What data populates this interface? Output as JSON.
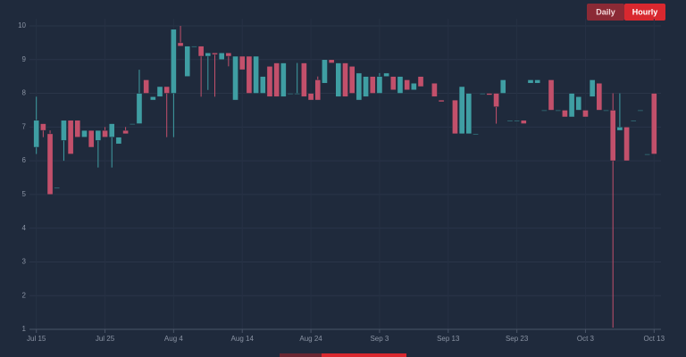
{
  "chart_data": {
    "type": "candlestick",
    "x": [
      "Jul 15",
      "Jul 16",
      "Jul 17",
      "Jul 18",
      "Jul 19",
      "Jul 20",
      "Jul 21",
      "Jul 22",
      "Jul 23",
      "Jul 24",
      "Jul 25",
      "Jul 26",
      "Jul 27",
      "Jul 28",
      "Jul 29",
      "Jul 30",
      "Jul 31",
      "Aug 1",
      "Aug 2",
      "Aug 3",
      "Aug 4",
      "Aug 5",
      "Aug 6",
      "Aug 7",
      "Aug 8",
      "Aug 9",
      "Aug 10",
      "Aug 11",
      "Aug 12",
      "Aug 13",
      "Aug 14",
      "Aug 15",
      "Aug 16",
      "Aug 17",
      "Aug 18",
      "Aug 19",
      "Aug 20",
      "Aug 21",
      "Aug 22",
      "Aug 23",
      "Aug 24",
      "Aug 25",
      "Aug 26",
      "Aug 27",
      "Aug 28",
      "Aug 29",
      "Aug 30",
      "Aug 31",
      "Sep 1",
      "Sep 2",
      "Sep 3",
      "Sep 4",
      "Sep 5",
      "Sep 6",
      "Sep 7",
      "Sep 8",
      "Sep 9",
      "Sep 11",
      "Sep 12",
      "Sep 14",
      "Sep 15",
      "Sep 16",
      "Sep 17",
      "Sep 18",
      "Sep 19",
      "Sep 20",
      "Sep 21",
      "Sep 22",
      "Sep 23",
      "Sep 24",
      "Sep 25",
      "Sep 26",
      "Sep 27",
      "Sep 28",
      "Sep 29",
      "Sep 30",
      "Oct 1",
      "Oct 2",
      "Oct 3",
      "Oct 4",
      "Oct 5",
      "Oct 6",
      "Oct 7",
      "Oct 8",
      "Oct 9",
      "Oct 10",
      "Oct 11",
      "Oct 12",
      "Oct 13"
    ],
    "open": [
      6.4,
      7.1,
      6.8,
      5.2,
      6.6,
      7.2,
      7.2,
      6.7,
      6.9,
      6.6,
      6.9,
      6.7,
      6.5,
      6.9,
      7.1,
      7.1,
      8.4,
      7.8,
      7.9,
      8.2,
      8.0,
      9.5,
      8.5,
      9.4,
      9.4,
      9.1,
      9.2,
      9.0,
      9.2,
      7.8,
      9.1,
      9.1,
      8.0,
      8.0,
      8.8,
      8.9,
      7.9,
      8.0,
      8.0,
      8.9,
      8.0,
      8.4,
      8.3,
      9.0,
      7.9,
      8.9,
      8.8,
      7.8,
      7.9,
      8.5,
      8.0,
      8.5,
      8.5,
      8.0,
      8.4,
      8.1,
      8.5,
      8.3,
      7.8,
      7.8,
      6.8,
      6.8,
      6.8,
      8.0,
      8.0,
      8.0,
      8.0,
      7.2,
      7.2,
      7.2,
      8.3,
      8.3,
      7.5,
      8.4,
      7.5,
      7.5,
      7.3,
      7.5,
      7.5,
      7.9,
      8.3,
      7.5,
      7.5,
      6.9,
      7.0,
      7.2,
      7.5,
      6.2,
      8.0
    ],
    "high": [
      7.9,
      7.1,
      6.9,
      5.2,
      7.2,
      7.2,
      7.2,
      6.9,
      6.9,
      6.9,
      7.0,
      7.1,
      6.7,
      7.0,
      7.1,
      8.7,
      8.4,
      7.9,
      8.2,
      8.2,
      9.9,
      10.0,
      9.4,
      9.4,
      9.4,
      9.2,
      9.2,
      9.2,
      9.2,
      9.1,
      9.1,
      9.1,
      9.1,
      8.5,
      8.8,
      8.9,
      8.9,
      8.0,
      8.9,
      8.9,
      8.0,
      8.5,
      9.0,
      9.0,
      8.9,
      8.9,
      8.8,
      8.6,
      8.5,
      8.5,
      8.6,
      8.6,
      8.5,
      8.5,
      8.4,
      8.3,
      8.5,
      8.3,
      7.8,
      7.8,
      8.2,
      8.0,
      6.8,
      8.0,
      8.0,
      8.0,
      8.4,
      7.2,
      7.2,
      7.2,
      8.4,
      8.4,
      7.5,
      8.4,
      7.5,
      7.5,
      8.0,
      7.9,
      7.5,
      8.4,
      8.3,
      7.5,
      8.0,
      8.0,
      7.0,
      7.2,
      7.5,
      6.2,
      8.0
    ],
    "low": [
      6.2,
      6.7,
      5.0,
      5.2,
      6.0,
      6.2,
      6.7,
      6.7,
      6.4,
      5.8,
      6.7,
      5.8,
      6.5,
      6.8,
      7.1,
      7.1,
      8.0,
      7.8,
      7.9,
      6.7,
      6.7,
      9.4,
      8.5,
      9.4,
      7.9,
      8.1,
      7.9,
      9.0,
      8.8,
      7.8,
      8.7,
      8.0,
      8.0,
      8.0,
      7.9,
      7.9,
      7.9,
      8.0,
      8.0,
      7.9,
      7.8,
      7.8,
      8.3,
      8.9,
      7.9,
      7.9,
      8.0,
      7.8,
      7.9,
      8.0,
      8.0,
      8.5,
      8.1,
      8.0,
      8.1,
      8.1,
      8.2,
      7.9,
      7.75,
      6.8,
      6.8,
      6.8,
      6.8,
      8.0,
      7.95,
      7.1,
      8.0,
      7.2,
      7.2,
      7.1,
      8.3,
      8.3,
      7.5,
      7.5,
      7.5,
      7.3,
      7.3,
      7.5,
      7.3,
      7.9,
      7.5,
      7.5,
      1.05,
      6.9,
      6.0,
      7.2,
      7.5,
      6.2,
      6.2
    ],
    "close": [
      7.2,
      6.9,
      5.0,
      5.2,
      7.2,
      6.2,
      6.7,
      6.9,
      6.4,
      6.9,
      6.7,
      7.1,
      6.7,
      6.8,
      7.1,
      8.0,
      8.0,
      7.9,
      8.2,
      8.0,
      9.9,
      9.4,
      9.4,
      9.4,
      9.1,
      9.2,
      9.15,
      9.2,
      9.1,
      9.1,
      8.7,
      8.0,
      9.1,
      8.5,
      7.9,
      7.9,
      8.9,
      8.0,
      8.0,
      7.9,
      7.8,
      7.8,
      9.0,
      8.9,
      8.9,
      7.9,
      8.0,
      8.6,
      8.5,
      8.0,
      8.5,
      8.6,
      8.1,
      8.5,
      8.1,
      8.3,
      8.2,
      7.9,
      7.75,
      6.8,
      8.2,
      8.0,
      6.8,
      8.0,
      7.95,
      7.6,
      8.4,
      7.2,
      7.2,
      7.1,
      8.4,
      8.4,
      7.5,
      7.5,
      7.5,
      7.3,
      8.0,
      7.9,
      7.3,
      8.4,
      7.5,
      7.5,
      6.0,
      7.0,
      6.0,
      7.2,
      7.5,
      6.2,
      6.2
    ],
    "up_color": "#3f9ea3",
    "down_color": "#c2506b",
    "xlim": [
      "Jul 14",
      "Oct 14"
    ],
    "xticks": [
      "Jul 15",
      "Jul 25",
      "Aug 4",
      "Aug 14",
      "Aug 24",
      "Sep 3",
      "Sep 13",
      "Sep 23",
      "Oct 3",
      "Oct 13"
    ],
    "ylim": [
      1,
      10
    ],
    "yticks": [
      1,
      2,
      3,
      4,
      5,
      6,
      7,
      8,
      9,
      10
    ],
    "grid": true,
    "buttons": [
      "Daily",
      "Hourly"
    ]
  }
}
